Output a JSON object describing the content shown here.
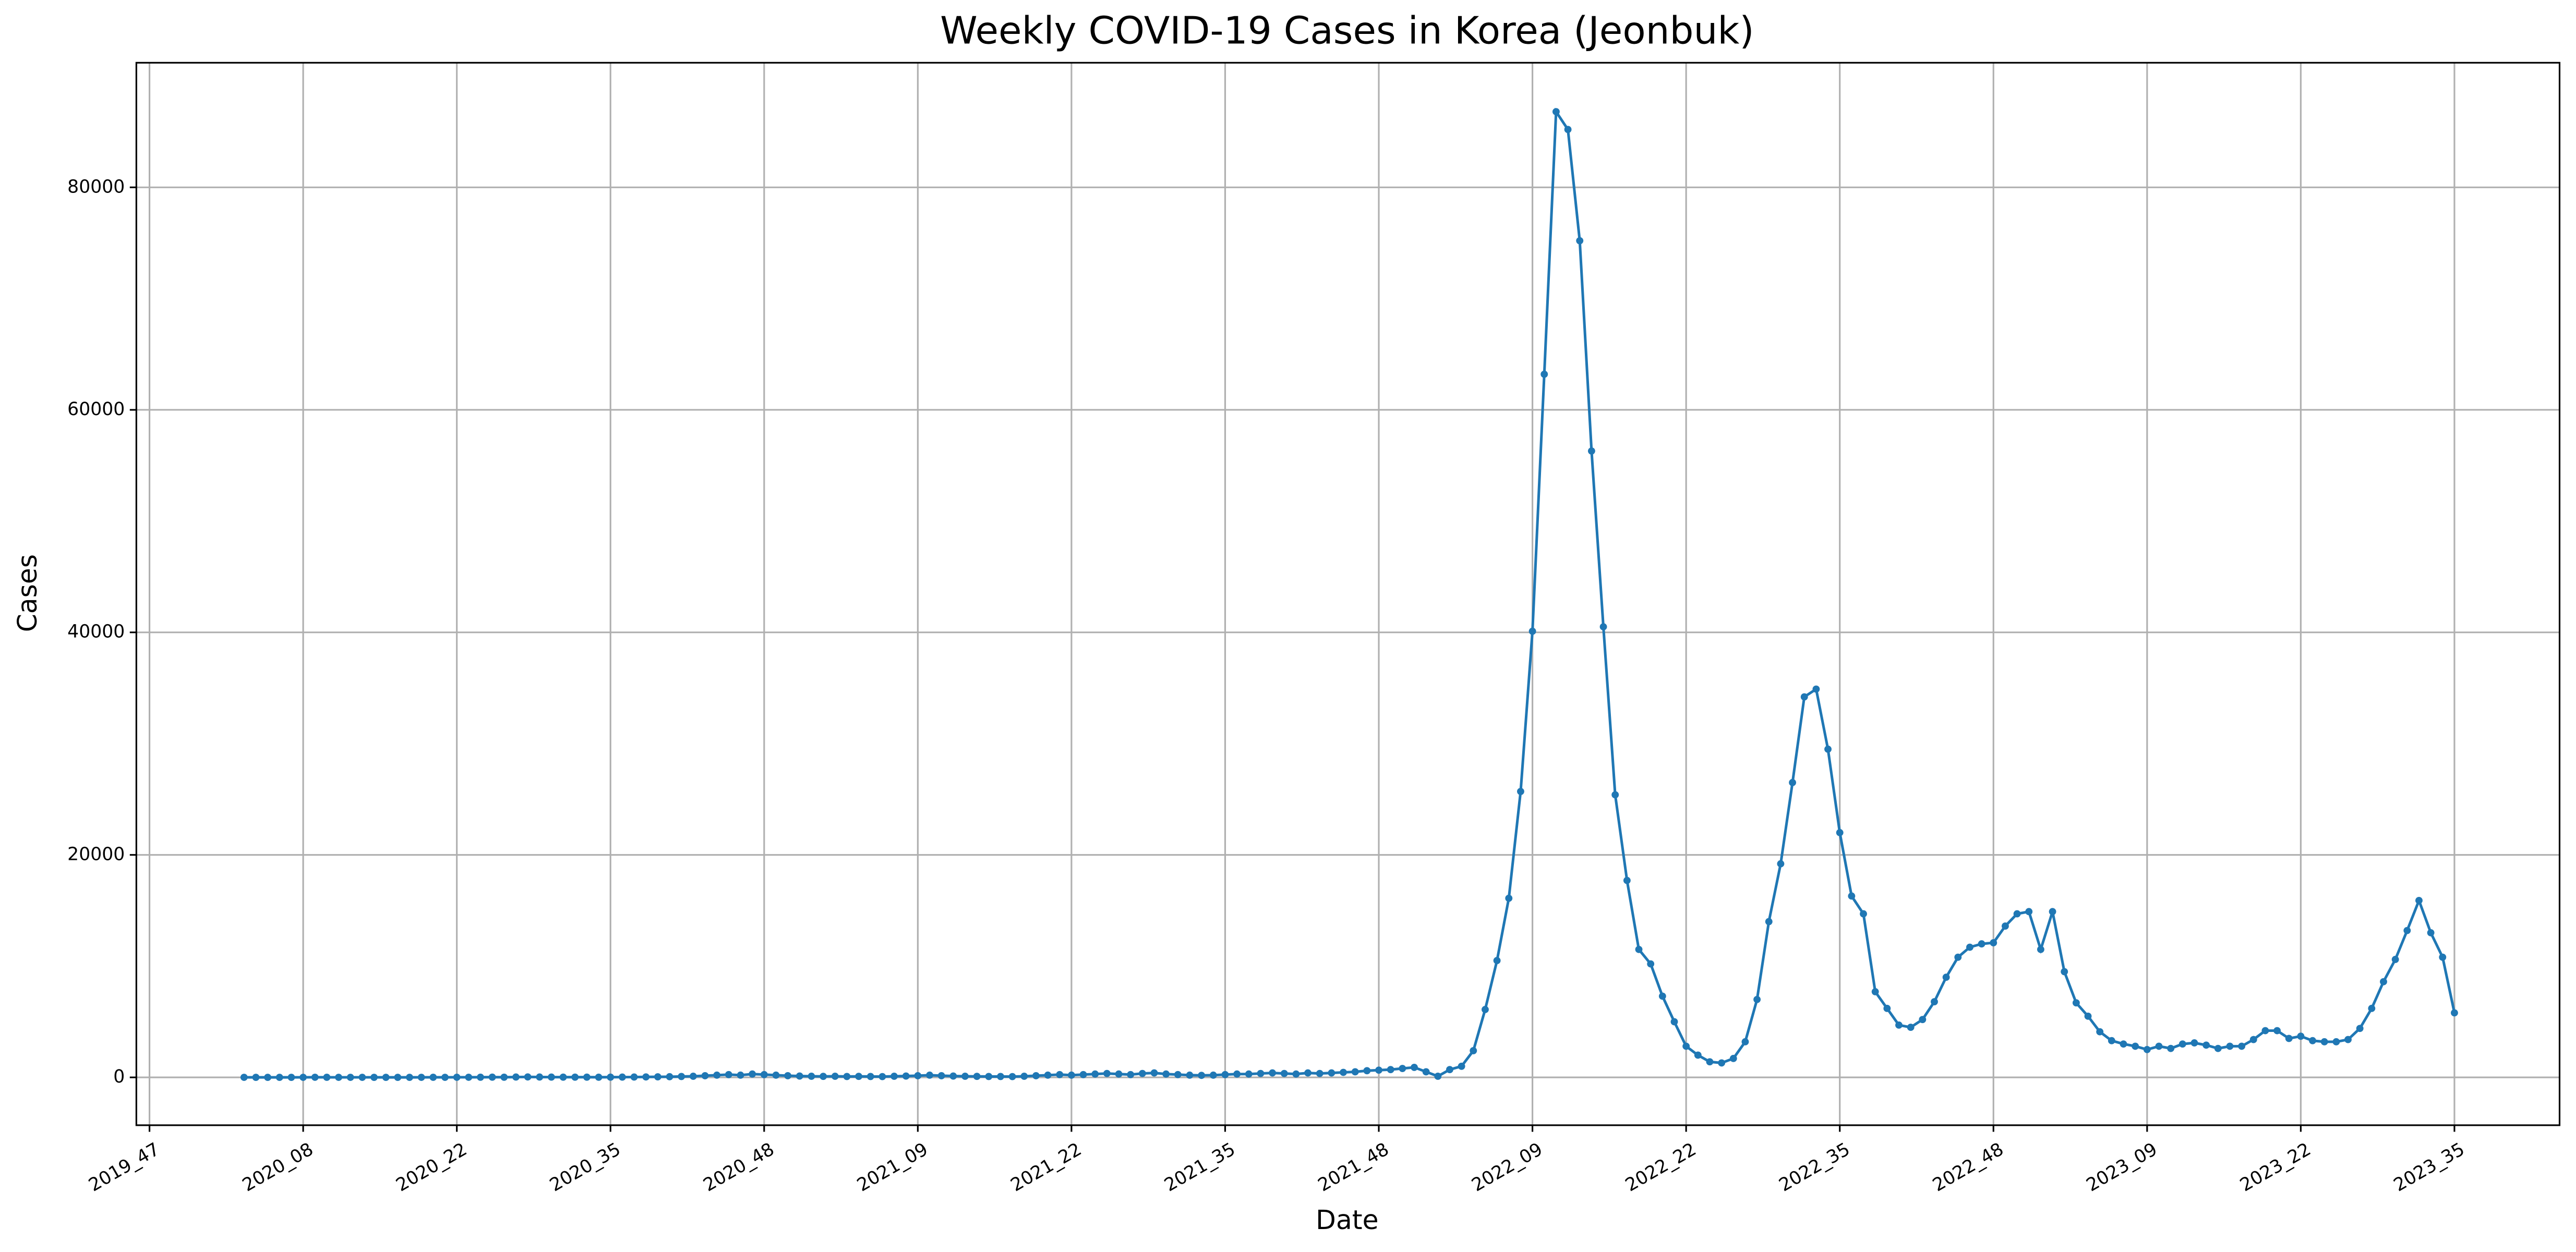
{
  "chart_data": {
    "type": "line",
    "title": "Weekly COVID-19 Cases in Korea (Jeonbuk)",
    "x_label": "Date",
    "y_label": "Cases",
    "color": "#1f77b4",
    "grid": true,
    "ylim": [
      -4300,
      91200
    ],
    "yticks": [
      0,
      20000,
      40000,
      60000,
      80000
    ],
    "categories": [
      "2019_47",
      null,
      null,
      null,
      null,
      null,
      null,
      null,
      null,
      null,
      null,
      null,
      null,
      "2020_08",
      null,
      null,
      null,
      null,
      null,
      null,
      null,
      null,
      null,
      null,
      null,
      null,
      "2020_22",
      null,
      null,
      null,
      null,
      null,
      null,
      null,
      null,
      null,
      null,
      null,
      null,
      "2020_35",
      null,
      null,
      null,
      null,
      null,
      null,
      null,
      null,
      null,
      null,
      null,
      null,
      "2020_48",
      null,
      null,
      null,
      null,
      null,
      null,
      null,
      null,
      null,
      null,
      null,
      null,
      "2021_09",
      null,
      null,
      null,
      null,
      null,
      null,
      null,
      null,
      null,
      null,
      null,
      null,
      "2021_22",
      null,
      null,
      null,
      null,
      null,
      null,
      null,
      null,
      null,
      null,
      null,
      null,
      "2021_35",
      null,
      null,
      null,
      null,
      null,
      null,
      null,
      null,
      null,
      null,
      null,
      null,
      "2021_48",
      null,
      null,
      null,
      null,
      null,
      null,
      null,
      null,
      null,
      null,
      null,
      null,
      "2022_09",
      null,
      null,
      null,
      null,
      null,
      null,
      null,
      null,
      null,
      null,
      null,
      null,
      "2022_22",
      null,
      null,
      null,
      null,
      null,
      null,
      null,
      null,
      null,
      null,
      null,
      null,
      "2022_35",
      null,
      null,
      null,
      null,
      null,
      null,
      null,
      null,
      null,
      null,
      null,
      null,
      "2022_48",
      null,
      null,
      null,
      null,
      null,
      null,
      null,
      null,
      null,
      null,
      null,
      null,
      "2023_09",
      null,
      null,
      null,
      null,
      null,
      null,
      null,
      null,
      null,
      null,
      null,
      null,
      "2023_22",
      null,
      null,
      null,
      null,
      null,
      null,
      null,
      null,
      null,
      null,
      null,
      null,
      "2023_35"
    ],
    "values": [
      null,
      null,
      null,
      null,
      null,
      null,
      null,
      null,
      5,
      3,
      2,
      2,
      3,
      5,
      10,
      8,
      5,
      5,
      5,
      4,
      3,
      3,
      3,
      5,
      8,
      5,
      10,
      10,
      15,
      20,
      15,
      30,
      40,
      30,
      25,
      20,
      20,
      20,
      15,
      20,
      25,
      30,
      40,
      50,
      60,
      80,
      100,
      150,
      200,
      250,
      200,
      300,
      250,
      200,
      150,
      120,
      100,
      90,
      100,
      80,
      90,
      80,
      70,
      100,
      120,
      150,
      200,
      150,
      120,
      100,
      90,
      80,
      80,
      70,
      100,
      150,
      200,
      250,
      200,
      250,
      300,
      350,
      300,
      250,
      350,
      400,
      300,
      250,
      200,
      180,
      200,
      250,
      300,
      300,
      350,
      400,
      350,
      300,
      400,
      350,
      400,
      450,
      500,
      600,
      650,
      700,
      800,
      900,
      500,
      100,
      700,
      1000,
      2400,
      6100,
      10500,
      16100,
      25700,
      40100,
      63200,
      86800,
      85200,
      75200,
      56300,
      40500,
      25400,
      17700,
      11500,
      10200,
      7300,
      5000,
      2800,
      2000,
      1400,
      1300,
      1700,
      3200,
      7000,
      14000,
      19200,
      26500,
      34200,
      34900,
      29500,
      22000,
      16300,
      14700,
      7700,
      6200,
      4700,
      4500,
      5200,
      6800,
      9000,
      10800,
      11700,
      12000,
      12100,
      13600,
      14700,
      14900,
      11500,
      14900,
      9500,
      6700,
      5500,
      4100,
      3300,
      3000,
      2800,
      2500,
      2800,
      2600,
      3000,
      3100,
      2900,
      2600,
      2800,
      2800,
      3400,
      4200,
      4200,
      3500,
      3700,
      3300,
      3200,
      3200,
      3400,
      4400,
      6200,
      8600,
      10600,
      13200,
      15900,
      13000,
      10800,
      5800
    ]
  }
}
